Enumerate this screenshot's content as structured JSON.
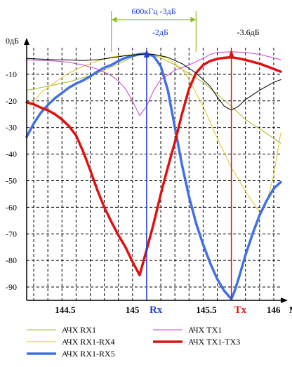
{
  "chart_data": {
    "type": "line",
    "title": "",
    "xlabel": "",
    "ylabel": "",
    "xlim": [
      144.25,
      146.05
    ],
    "ylim": [
      -95,
      0
    ],
    "y_unit_label": "0дБ",
    "x_unit_label": "МГц",
    "grid": true,
    "legend_position": "bottom",
    "y_ticks": [
      {
        "value": 0,
        "label": ""
      },
      {
        "value": -10,
        "label": "-10"
      },
      {
        "value": -20,
        "label": "-20"
      },
      {
        "value": -30,
        "label": "-30"
      },
      {
        "value": -40,
        "label": "-40"
      },
      {
        "value": -50,
        "label": "-50"
      },
      {
        "value": -60,
        "label": "-60"
      },
      {
        "value": -70,
        "label": "-70"
      },
      {
        "value": -80,
        "label": "-80"
      },
      {
        "value": -90,
        "label": "-90"
      }
    ],
    "x_ticks": [
      {
        "value": 144.5,
        "label": "144.5"
      },
      {
        "value": 145.0,
        "label": "145"
      },
      {
        "value": 145.5,
        "label": "145.5"
      },
      {
        "value": 146.0,
        "label": "146"
      }
    ],
    "markers": [
      {
        "name": "Rx",
        "x": 145.1,
        "color": "#1f3fd0"
      },
      {
        "name": "Tx",
        "x": 145.7,
        "color": "#e01010"
      }
    ],
    "annotations": {
      "bandwidth_label": "600кГц -3дБ",
      "bandwidth_range": [
        144.85,
        145.45
      ],
      "rx_peak_label": "-2дБ",
      "tx_peak_label": "-3.6дБ"
    },
    "series": [
      {
        "name": "АЧХ RX1",
        "color": "#a8b820",
        "width": 1,
        "x": [
          144.25,
          144.4,
          144.55,
          144.7,
          144.8,
          144.9,
          145.0,
          145.05,
          145.1,
          145.15,
          145.2,
          145.3,
          145.4,
          145.5,
          145.6,
          145.7,
          145.8,
          145.9,
          146.0,
          146.05
        ],
        "values": [
          -16,
          -14.5,
          -12.8,
          -10.5,
          -8.5,
          -6,
          -3.5,
          -2.8,
          -2.4,
          -2.8,
          -3.8,
          -6.5,
          -9.8,
          -13,
          -17.5,
          -22,
          -27,
          -30.5,
          -34,
          -36
        ]
      },
      {
        "name": "АЧХ RX1-RX4",
        "color": "#e2c61c",
        "width": 1,
        "x": [
          144.27,
          144.35,
          144.45,
          144.55,
          144.65,
          144.75,
          144.85,
          144.95,
          145.05,
          145.1,
          145.15,
          145.25,
          145.35,
          145.4,
          145.5,
          145.55,
          145.6,
          145.7,
          145.8,
          145.9,
          145.95,
          146.0,
          146.05
        ],
        "values": [
          -22,
          -17,
          -13,
          -9.5,
          -7,
          -5,
          -3.5,
          -2.8,
          -2.3,
          -2.2,
          -2.5,
          -4,
          -8,
          -12,
          -22,
          -28,
          -34,
          -45,
          -54,
          -62,
          -58,
          -48,
          -32
        ]
      },
      {
        "name": "АЧХ RX1-RX5",
        "color": "#4070e6",
        "width": 3.5,
        "x": [
          144.25,
          144.3,
          144.35,
          144.4,
          144.45,
          144.5,
          144.55,
          144.6,
          144.65,
          144.7,
          144.75,
          144.8,
          144.85,
          144.9,
          144.95,
          145.0,
          145.05,
          145.1,
          145.15,
          145.2,
          145.25,
          145.3,
          145.35,
          145.4,
          145.45,
          145.5,
          145.55,
          145.6,
          145.65,
          145.7,
          145.72,
          145.75,
          145.8,
          145.85,
          145.9,
          145.95,
          146.0,
          146.05
        ],
        "values": [
          -33.5,
          -28.5,
          -24.5,
          -21.5,
          -19,
          -17,
          -15,
          -13.5,
          -12.3,
          -10.8,
          -9,
          -7.5,
          -6.5,
          -5,
          -3.8,
          -3,
          -2.4,
          -2.2,
          -3.2,
          -7,
          -16,
          -30,
          -44,
          -56,
          -66,
          -74,
          -81,
          -87,
          -91.5,
          -94.5,
          -92,
          -87,
          -78,
          -70,
          -63,
          -57.5,
          -53,
          -50.5
        ]
      },
      {
        "name": "АЧХ TX1",
        "color": "#c840c8",
        "width": 1,
        "x": [
          144.25,
          144.35,
          144.45,
          144.55,
          144.65,
          144.75,
          144.85,
          144.9,
          144.95,
          145.0,
          145.05,
          145.1,
          145.15,
          145.2,
          145.3,
          145.4,
          145.5,
          145.55,
          145.6,
          145.7,
          145.8,
          145.9,
          146.0,
          146.05
        ],
        "values": [
          -4.5,
          -4.8,
          -5,
          -5.5,
          -6.5,
          -8,
          -10.5,
          -12.5,
          -15.5,
          -20,
          -25.5,
          -22,
          -16,
          -12,
          -8.5,
          -6.5,
          -4,
          -2.5,
          -1.8,
          -1.5,
          -1.8,
          -2.5,
          -3.8,
          -4.5
        ]
      },
      {
        "name": "АЧХ TX1-TX3",
        "color": "#e01010",
        "width": 3.5,
        "x": [
          144.25,
          144.3,
          144.35,
          144.4,
          144.45,
          144.5,
          144.55,
          144.6,
          144.65,
          144.7,
          144.75,
          144.8,
          144.85,
          144.9,
          144.95,
          145.0,
          145.05,
          145.1,
          145.15,
          145.2,
          145.25,
          145.3,
          145.35,
          145.4,
          145.45,
          145.5,
          145.55,
          145.6,
          145.65,
          145.7,
          145.75,
          145.8,
          145.85,
          145.9,
          145.95,
          146.0,
          146.05
        ],
        "values": [
          -20.5,
          -21.3,
          -22.5,
          -23.5,
          -25,
          -27,
          -29.5,
          -33,
          -39,
          -46,
          -53.5,
          -60,
          -65.5,
          -70.5,
          -75,
          -80.5,
          -85.5,
          -76,
          -66,
          -55,
          -45,
          -35.5,
          -25,
          -15.5,
          -9.5,
          -6.5,
          -5,
          -4.2,
          -3.8,
          -3.6,
          -4,
          -4.6,
          -5.3,
          -6,
          -7,
          -8,
          -9
        ]
      },
      {
        "name": "",
        "color": "#000000",
        "width": 1,
        "x": [
          144.25,
          144.35,
          144.45,
          144.55,
          144.65,
          144.75,
          144.85,
          144.95,
          145.05,
          145.1,
          145.15,
          145.25,
          145.35,
          145.45,
          145.55,
          145.6,
          145.65,
          145.7,
          145.75,
          145.8,
          145.9,
          146.0,
          146.05
        ],
        "values": [
          -4,
          -4.3,
          -4.5,
          -4.6,
          -4.8,
          -4.5,
          -3.8,
          -3,
          -2.5,
          -2.4,
          -2.5,
          -3.6,
          -6,
          -9.5,
          -14.5,
          -18.5,
          -22,
          -23.5,
          -22,
          -19.5,
          -16,
          -13,
          -12
        ]
      }
    ],
    "legend": [
      {
        "label": "АЧХ  RX1",
        "series": 0
      },
      {
        "label": "АЧХ  RX1-RX4",
        "series": 1
      },
      {
        "label": "АЧХ  RX1-RX5",
        "series": 2
      },
      {
        "label": "АЧХ  TX1",
        "series": 3
      },
      {
        "label": "АЧХ    TX1-TX3",
        "series": 4
      }
    ]
  }
}
